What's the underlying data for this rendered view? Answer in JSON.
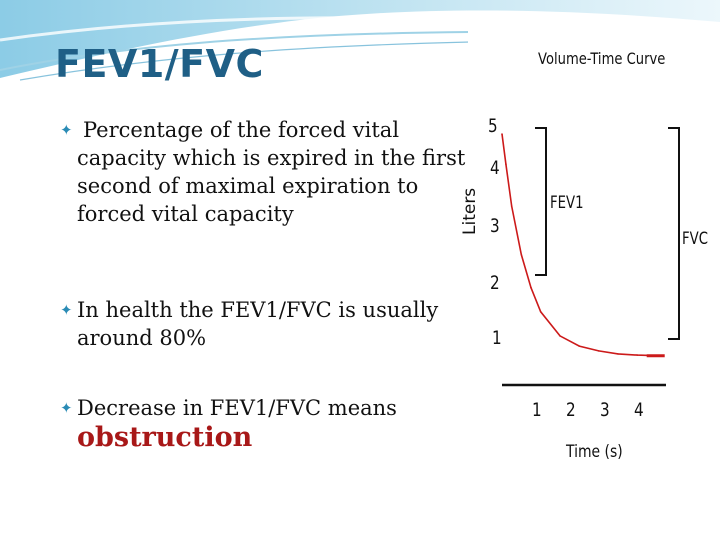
{
  "slide": {
    "title": "FEV1/FVC",
    "bullets": [
      {
        "text": "Percentage of the forced vital capacity which is expired in the first second of maximal expiration to forced vital capacity"
      },
      {
        "text": "In health the FEV1/FVC is usually around 80%"
      },
      {
        "text": "Decrease in FEV1/FVC  means",
        "emphasis": "obstruction"
      }
    ],
    "colors": {
      "title": "#1f5f86",
      "bullet_marker": "#2a8bb5",
      "emphasis": "#a81818",
      "curve": "#cc1a1a"
    }
  },
  "figure": {
    "title": "Volume-Time Curve",
    "ylabel": "Liters",
    "xlabel": "Time (s)",
    "fev_label": "FEV1",
    "fvc_label": "FVC",
    "y_ticks": [
      "5",
      "4",
      "3",
      "2",
      "1"
    ],
    "x_ticks": [
      "1",
      "2",
      "3",
      "4"
    ]
  },
  "chart_data": {
    "type": "line",
    "title": "Volume-Time Curve",
    "xlabel": "Time (s)",
    "ylabel": "Liters",
    "xlim": [
      0,
      4.5
    ],
    "ylim": [
      1,
      5
    ],
    "series": [
      {
        "x": [
          0,
          0.1,
          0.25,
          0.5,
          0.75,
          1.0,
          1.5,
          2.0,
          2.5,
          3.0,
          3.5,
          4.0
        ],
        "values": [
          4.9,
          4.4,
          3.7,
          2.9,
          2.35,
          1.95,
          1.55,
          1.38,
          1.3,
          1.25,
          1.23,
          1.22
        ]
      }
    ],
    "annotations": [
      "FEV1",
      "FVC"
    ]
  }
}
